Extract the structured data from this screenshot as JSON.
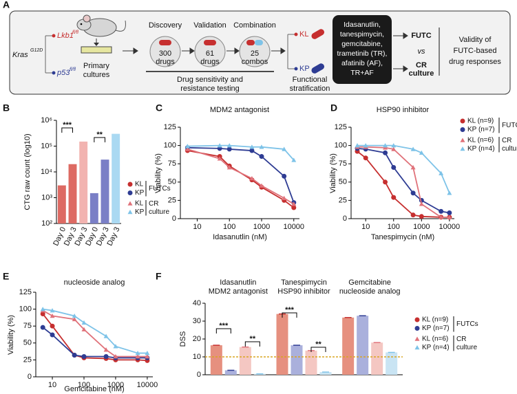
{
  "panel_labels": [
    "A",
    "B",
    "C",
    "D",
    "E",
    "F"
  ],
  "diagram": {
    "kras": "Kras",
    "kras_sup": "G12D",
    "lkb1": "Lkb1",
    "lkb1_sup": "fl/fl",
    "p53": "p53",
    "p53_sup": "fl/fl",
    "primary": [
      "Primary",
      "cultures"
    ],
    "steps": [
      {
        "title": "Discovery",
        "count": "300",
        "unit": "drugs"
      },
      {
        "title": "Validation",
        "count": "61",
        "unit": "drugs"
      },
      {
        "title": "Combination",
        "count": "25",
        "unit": "combos"
      }
    ],
    "testing": [
      "Drug sensitivity and",
      "resistance testing"
    ],
    "kl": "KL",
    "kp": "KP",
    "stratification": [
      "Functional",
      "stratification"
    ],
    "drugs": [
      "Idasanutlin,",
      "tanespimycin,",
      "gemcitabine,",
      "trametinib (TR),",
      "afatinib (AF),",
      "TR+AF"
    ],
    "futc": "FUTC",
    "vs": "vs",
    "cr": [
      "CR",
      "culture"
    ],
    "validity": [
      "Validity of",
      "FUTC-based",
      "drug responses"
    ]
  },
  "chart_data": [
    {
      "type": "bar",
      "y_label": "CTG raw count (log10)",
      "log_scale": true,
      "categories": [
        "Day 0",
        "Day 3",
        "Day 3",
        "Day 0",
        "Day 3",
        "Day 3"
      ],
      "values": [
        3000,
        20000,
        150000,
        1500,
        30000,
        300000
      ],
      "colors": [
        "#dd6a63",
        "#dd6a63",
        "#f2b3b0",
        "#7a7fc6",
        "#7a7fc6",
        "#aad9f2"
      ],
      "ylim": [
        100,
        1000000
      ],
      "yticks": [
        {
          "value": 100,
          "label": "10²"
        },
        {
          "value": 1000,
          "label": "10³"
        },
        {
          "value": 10000,
          "label": "10⁴"
        },
        {
          "value": 100000,
          "label": "10⁵"
        },
        {
          "value": 1000000,
          "label": "10⁶"
        }
      ],
      "annotations": [
        "***",
        "**"
      ],
      "legend": [
        {
          "name": "KL",
          "color": "#c62f2f",
          "marker": "circle"
        },
        {
          "name": "KP",
          "color": "#2e3c93",
          "marker": "circle"
        },
        {
          "name": "KL",
          "color": "#e0727a",
          "marker": "triangle"
        },
        {
          "name": "KP",
          "color": "#7ec3e8",
          "marker": "triangle"
        }
      ],
      "legend_groups": [
        "FUTCs",
        [
          "CR",
          "culture"
        ]
      ]
    },
    {
      "type": "line",
      "title": "MDM2 antagonist",
      "x_label": "Idasanutlin (nM)",
      "y_label": "Viability (%)",
      "log_x": true,
      "x": [
        5,
        50,
        100,
        500,
        1000,
        5000,
        10000
      ],
      "xlim": [
        3,
        15000
      ],
      "xticks": [
        10,
        100,
        1000,
        10000
      ],
      "ylim": [
        0,
        125
      ],
      "yticks": [
        0,
        25,
        50,
        75,
        100,
        125
      ],
      "series": [
        {
          "color": "#c62f2f",
          "marker": "circle",
          "values": [
            93,
            85,
            72,
            53,
            43,
            25,
            15
          ]
        },
        {
          "color": "#2e3c93",
          "marker": "circle",
          "values": [
            97,
            96,
            95,
            93,
            85,
            58,
            22
          ]
        },
        {
          "color": "#e0727a",
          "marker": "triangle",
          "values": [
            95,
            82,
            70,
            55,
            45,
            28,
            20
          ]
        },
        {
          "color": "#7ec3e8",
          "marker": "triangle",
          "values": [
            99,
            100,
            100,
            98,
            98,
            95,
            80
          ]
        }
      ]
    },
    {
      "type": "line",
      "title": "HSP90 inhibitor",
      "x_label": "Tanespimycin (nM)",
      "y_label": "Viability (%)",
      "log_x": true,
      "x": [
        5,
        10,
        50,
        100,
        500,
        1000,
        5000,
        10000
      ],
      "xlim": [
        3,
        15000
      ],
      "xticks": [
        10,
        100,
        1000,
        10000
      ],
      "ylim": [
        0,
        125
      ],
      "yticks": [
        0,
        25,
        50,
        75,
        100,
        125
      ],
      "series": [
        {
          "name": "KL (n=9)",
          "color": "#c62f2f",
          "marker": "circle",
          "values": [
            92,
            83,
            50,
            29,
            5,
            3,
            2,
            2
          ]
        },
        {
          "name": "KP (n=7)",
          "color": "#2e3c93",
          "marker": "circle",
          "values": [
            96,
            95,
            90,
            70,
            35,
            25,
            10,
            8
          ]
        },
        {
          "name": "KL (n=6)",
          "color": "#e0727a",
          "marker": "triangle",
          "values": [
            98,
            98,
            97,
            95,
            70,
            20,
            2,
            2
          ]
        },
        {
          "name": "KP (n=4)",
          "color": "#7ec3e8",
          "marker": "triangle",
          "values": [
            100,
            100,
            100,
            100,
            95,
            90,
            62,
            35
          ]
        }
      ],
      "legend_groups": [
        "FUTCs",
        [
          "CR",
          "culture"
        ]
      ]
    },
    {
      "type": "line",
      "title": "nucleoside analog",
      "x_label": "Gemcitabine (nM)",
      "y_label": "Viability (%)",
      "log_x": true,
      "x": [
        5,
        10,
        50,
        100,
        500,
        1000,
        5000,
        10000
      ],
      "xlim": [
        3,
        15000
      ],
      "xticks": [
        10,
        100,
        1000,
        10000
      ],
      "ylim": [
        0,
        125
      ],
      "yticks": [
        0,
        25,
        50,
        75,
        100,
        125
      ],
      "series": [
        {
          "color": "#c62f2f",
          "marker": "circle",
          "values": [
            93,
            75,
            32,
            28,
            27,
            25,
            25,
            24
          ]
        },
        {
          "color": "#2e3c93",
          "marker": "circle",
          "values": [
            73,
            62,
            32,
            30,
            30,
            28,
            28,
            28
          ]
        },
        {
          "color": "#e0727a",
          "marker": "triangle",
          "values": [
            98,
            90,
            85,
            70,
            40,
            30,
            30,
            30
          ]
        },
        {
          "color": "#7ec3e8",
          "marker": "triangle",
          "values": [
            100,
            98,
            90,
            80,
            60,
            45,
            35,
            35
          ]
        }
      ]
    },
    {
      "type": "grouped_bar",
      "y_label": "DSS",
      "groups": [
        [
          "Idasanutlin",
          "MDM2 antagonist"
        ],
        [
          "Tanespimycin",
          "HSP90 inhibitor"
        ],
        [
          "Gemcitabine",
          "nucleoside analog"
        ]
      ],
      "series": [
        {
          "name": "KL (n=9)",
          "color": "#c62f2f",
          "fill": "#e6907f",
          "marker": "circle",
          "values": [
            16.5,
            34,
            32
          ]
        },
        {
          "name": "KP (n=7)",
          "color": "#2e3c93",
          "fill": "#aab0dc",
          "marker": "circle",
          "values": [
            2.5,
            16.5,
            33
          ]
        },
        {
          "name": "KL (n=6)",
          "color": "#e0727a",
          "fill": "#f4c7c2",
          "marker": "triangle",
          "values": [
            15.5,
            13.5,
            18
          ]
        },
        {
          "name": "KP (n=4)",
          "color": "#7ec3e8",
          "fill": "#c9e4f3",
          "marker": "triangle",
          "values": [
            0.5,
            1.5,
            12.5
          ]
        }
      ],
      "ylim": [
        0,
        40
      ],
      "yticks": [
        0,
        10,
        20,
        30,
        40
      ],
      "reference_line": 10,
      "reference_color": "#d9a520",
      "annotations": [
        "***",
        "**",
        "***",
        "**"
      ],
      "legend_groups": [
        "FUTCs",
        [
          "CR",
          "culture"
        ]
      ]
    }
  ]
}
